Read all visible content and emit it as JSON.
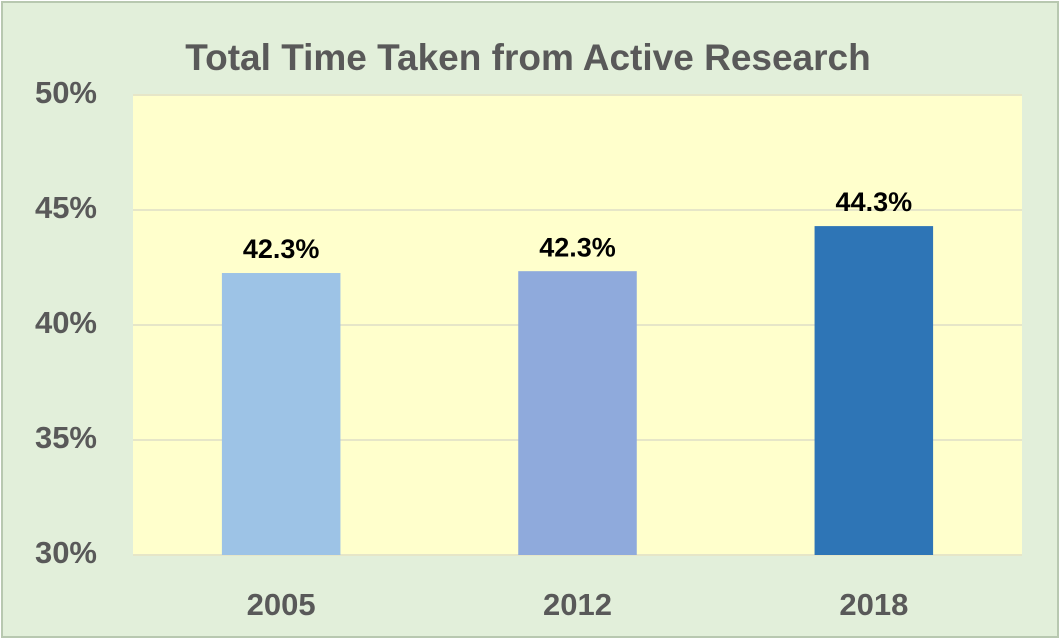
{
  "chart_data": {
    "type": "bar",
    "title": "Total Time Taken from Active Research",
    "categories": [
      "2005",
      "2012",
      "2018"
    ],
    "values": [
      42.26,
      42.34,
      44.3
    ],
    "value_labels": [
      "42.3%",
      "42.3%",
      "44.3%"
    ],
    "colors": [
      "#9dc3e6",
      "#8faadc",
      "#2e75b6"
    ],
    "ylim": [
      30,
      50
    ],
    "yticks": [
      {
        "value": 30,
        "label": "30%"
      },
      {
        "value": 35,
        "label": "35%"
      },
      {
        "value": 40,
        "label": "40%"
      },
      {
        "value": 45,
        "label": "45%"
      },
      {
        "value": 50,
        "label": "50%"
      }
    ],
    "grid": true
  }
}
